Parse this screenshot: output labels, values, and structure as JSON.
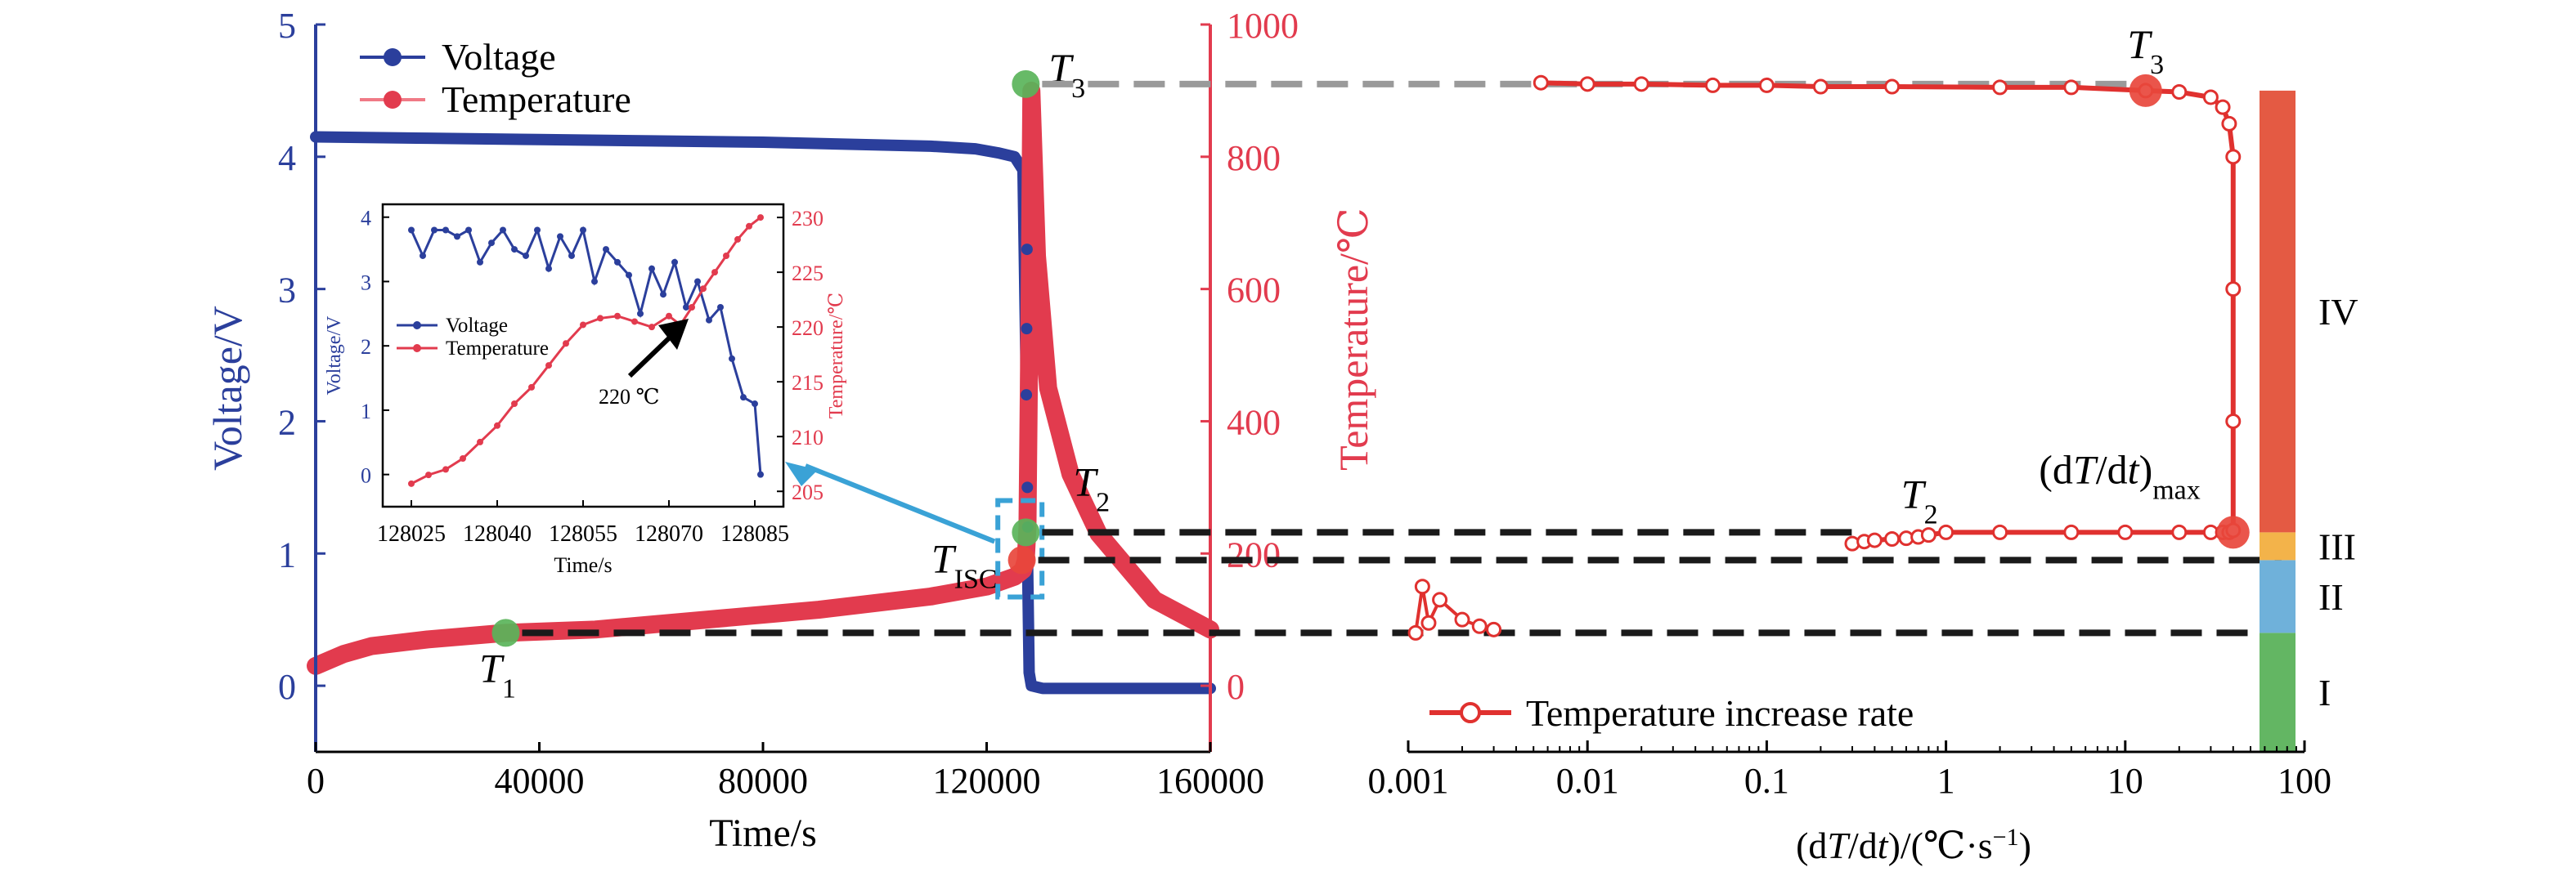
{
  "colors": {
    "voltage": "#2b3f9c",
    "temperature": "#e23b4e",
    "temperature_light": "#f07a86",
    "rate": "#e0312f",
    "marker_green": "#5ab45a",
    "marker_red": "#e8463c",
    "inset_arrow": "#3aa2d6",
    "stage_I": "#63b663",
    "stage_II": "#6fb1da",
    "stage_III": "#f3b34a",
    "stage_IV": "#e45a43",
    "dash_black": "#1a1a1a",
    "dash_grey": "#9a9a9a"
  },
  "chart_data": [
    {
      "id": "main",
      "type": "line",
      "xlabel": "Time/s",
      "ylabel_left": "Voltage/V",
      "ylabel_right": "Temperature/℃",
      "xlim": [
        0,
        160000
      ],
      "ylim_left": [
        -0.5,
        5
      ],
      "ylim_right": [
        -100,
        1000
      ],
      "x_ticks": [
        0,
        40000,
        80000,
        120000,
        160000
      ],
      "x_tick_labels": [
        "0",
        "40000",
        "80000",
        "120000",
        "160000"
      ],
      "y_left_ticks": [
        0,
        1,
        2,
        3,
        4,
        5
      ],
      "y_left_tick_labels": [
        "0",
        "1",
        "2",
        "3",
        "4",
        "5"
      ],
      "y_right_ticks": [
        0,
        200,
        400,
        600,
        800,
        1000
      ],
      "y_right_tick_labels": [
        "0",
        "200",
        "400",
        "600",
        "800",
        "1000"
      ],
      "legend": [
        "Voltage",
        "Temperature"
      ],
      "legend_position": "top-left",
      "series": [
        {
          "name": "Voltage",
          "axis": "left",
          "x": [
            0,
            20000,
            40000,
            60000,
            80000,
            100000,
            110000,
            118000,
            122000,
            125000,
            126500,
            127000,
            127300,
            127600,
            128000,
            130000,
            140000,
            150000,
            160000
          ],
          "y": [
            4.15,
            4.14,
            4.13,
            4.12,
            4.11,
            4.09,
            4.08,
            4.06,
            4.03,
            4.0,
            3.9,
            2.5,
            1.0,
            0.1,
            0.0,
            -0.02,
            -0.02,
            -0.02,
            -0.02
          ]
        },
        {
          "name": "Temperature",
          "axis": "right",
          "x": [
            0,
            5000,
            10000,
            20000,
            34000,
            50000,
            70000,
            90000,
            110000,
            120000,
            125000,
            126500,
            127000,
            127300,
            127600,
            128000,
            129000,
            131000,
            135000,
            140000,
            150000,
            160000
          ],
          "y": [
            30,
            48,
            60,
            70,
            80,
            85,
            100,
            115,
            135,
            150,
            165,
            175,
            190,
            240,
            500,
            900,
            650,
            450,
            320,
            230,
            130,
            85
          ]
        }
      ],
      "annotations": [
        {
          "label": "T",
          "sub": "1",
          "x": 34000,
          "y_right": 80,
          "marker": "green"
        },
        {
          "label": "T",
          "sub": "ISC",
          "x": 126300,
          "y_right": 190,
          "marker": "red"
        },
        {
          "label": "T",
          "sub": "2",
          "x": 127000,
          "y_right": 232,
          "marker": "green"
        },
        {
          "label": "T",
          "sub": "3",
          "x": 127000,
          "y_right": 910,
          "marker": "green"
        }
      ]
    },
    {
      "id": "inset",
      "type": "line",
      "xlabel": "Time/s",
      "ylabel_left": "Voltage/V",
      "ylabel_right": "Temperature/℃",
      "xlim": [
        128020,
        128090
      ],
      "ylim_left": [
        -0.5,
        4.2
      ],
      "ylim_right": [
        203.6,
        231.2
      ],
      "x_ticks": [
        128025,
        128040,
        128055,
        128070,
        128085
      ],
      "x_tick_labels": [
        "128025",
        "128040",
        "128055",
        "128070",
        "128085"
      ],
      "y_left_ticks": [
        0,
        1,
        2,
        3,
        4
      ],
      "y_left_tick_labels": [
        "0",
        "1",
        "2",
        "3",
        "4"
      ],
      "y_right_ticks": [
        205,
        210,
        215,
        220,
        225,
        230
      ],
      "y_right_tick_labels": [
        "205",
        "210",
        "215",
        "220",
        "225",
        "230"
      ],
      "legend": [
        "Voltage",
        "Temperature"
      ],
      "legend_position": "middle-left",
      "annotation_text": "220 ℃",
      "series": [
        {
          "name": "Voltage",
          "axis": "left",
          "x": [
            128025,
            128027,
            128029,
            128031,
            128033,
            128035,
            128037,
            128039,
            128041,
            128043,
            128045,
            128047,
            128049,
            128051,
            128053,
            128055,
            128057,
            128059,
            128061,
            128063,
            128065,
            128067,
            128069,
            128071,
            128073,
            128075,
            128077,
            128079,
            128081,
            128083,
            128085,
            128086
          ],
          "y": [
            3.8,
            3.4,
            3.8,
            3.8,
            3.7,
            3.8,
            3.3,
            3.6,
            3.8,
            3.5,
            3.4,
            3.8,
            3.2,
            3.7,
            3.4,
            3.8,
            3.0,
            3.5,
            3.3,
            3.1,
            2.5,
            3.2,
            2.8,
            3.3,
            2.6,
            3.0,
            2.4,
            2.6,
            1.8,
            1.2,
            1.1,
            0.0
          ]
        },
        {
          "name": "Temperature",
          "axis": "right",
          "x": [
            128025,
            128028,
            128031,
            128034,
            128037,
            128040,
            128043,
            128046,
            128049,
            128052,
            128055,
            128058,
            128061,
            128064,
            128067,
            128070,
            128072,
            128074,
            128076,
            128078,
            128080,
            128082,
            128084,
            128086
          ],
          "y": [
            205.7,
            206.5,
            207.0,
            208.0,
            209.5,
            211.0,
            213.0,
            214.5,
            216.5,
            218.5,
            220.2,
            220.8,
            221.0,
            220.5,
            220.0,
            221.0,
            220.2,
            221.8,
            223.5,
            225.0,
            226.5,
            228.0,
            229.2,
            230.0
          ]
        }
      ]
    },
    {
      "id": "rate",
      "type": "line",
      "xlabel": "(dT/dt)/(℃·s⁻¹)",
      "xscale": "log",
      "xlim": [
        0.001,
        100
      ],
      "ylim_right": [
        -100,
        1000
      ],
      "x_ticks": [
        0.001,
        0.01,
        0.1,
        1,
        10,
        100
      ],
      "x_tick_labels": [
        "0.001",
        "0.01",
        "0.1",
        "1",
        "10",
        "100"
      ],
      "legend": [
        "Temperature increase rate"
      ],
      "legend_position": "bottom-left",
      "series": [
        {
          "name": "Temperature increase rate",
          "x": [
            0.0011,
            0.0012,
            0.0013,
            0.0015,
            0.002,
            0.0025,
            0.003,
            0.3,
            0.35,
            0.4,
            0.5,
            0.6,
            0.7,
            0.8,
            1.0,
            2.0,
            5.0,
            10.0,
            20.0,
            30.0,
            35.0,
            38.0,
            40.0,
            40.0,
            40.0,
            40.0,
            38.0,
            35.0,
            30.0,
            20.0,
            13.0,
            5.0,
            2.0,
            0.5,
            0.2,
            0.1,
            0.05,
            0.02,
            0.01,
            0.0055
          ],
          "y": [
            80,
            150,
            95,
            130,
            100,
            90,
            85,
            215,
            218,
            220,
            222,
            223,
            225,
            228,
            232,
            232,
            232,
            232,
            232,
            232,
            232,
            232,
            235,
            400,
            600,
            800,
            850,
            875,
            890,
            898,
            900,
            905,
            905,
            906,
            906,
            908,
            908,
            910,
            910,
            912
          ]
        }
      ],
      "annotations": [
        {
          "label": "T",
          "sub": "2",
          "x": 1.0,
          "y_right": 232
        },
        {
          "label": "T",
          "sub": "3",
          "x": 13.0,
          "y_right": 900,
          "marker": "red"
        },
        {
          "label": "(dT/dt)",
          "sub": "max",
          "x": 40.0,
          "y_right": 232,
          "marker": "red"
        }
      ],
      "stages": [
        {
          "label": "I",
          "from": -100,
          "to": 80
        },
        {
          "label": "II",
          "from": 80,
          "to": 190
        },
        {
          "label": "III",
          "from": 190,
          "to": 232
        },
        {
          "label": "IV",
          "from": 232,
          "to": 900
        }
      ]
    }
  ]
}
